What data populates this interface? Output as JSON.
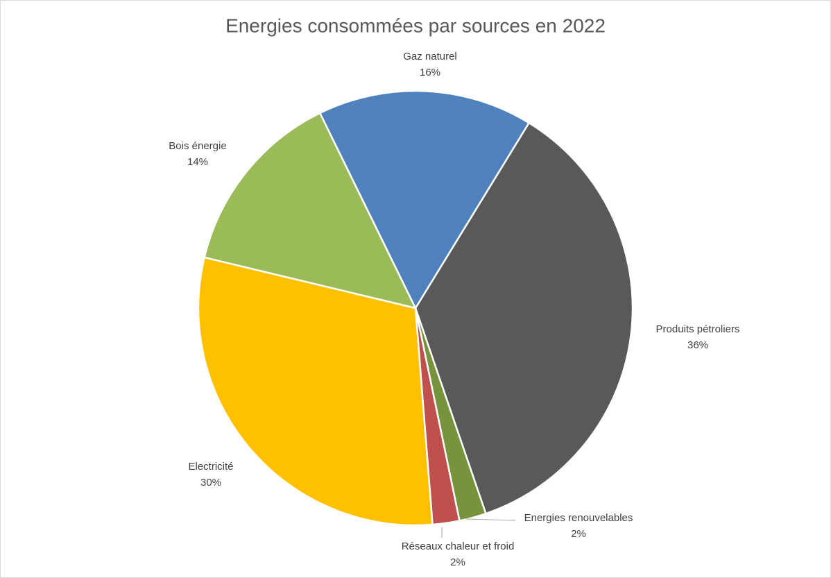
{
  "chart_data": {
    "type": "pie",
    "title": "Energies consommées  par sources en 2022",
    "categories": [
      "Produits pétroliers",
      "Energies renouvelables",
      "Réseaux chaleur et froid",
      "Electricité",
      "Bois énergie",
      "Gaz naturel"
    ],
    "values": [
      36,
      2,
      2,
      30,
      14,
      16
    ],
    "value_labels": [
      "36%",
      "2%",
      "2%",
      "30%",
      "14%",
      "16%"
    ],
    "colors": [
      "#595959",
      "#77933c",
      "#c0504d",
      "#ffc000",
      "#9bbb59",
      "#4f81bd"
    ]
  }
}
